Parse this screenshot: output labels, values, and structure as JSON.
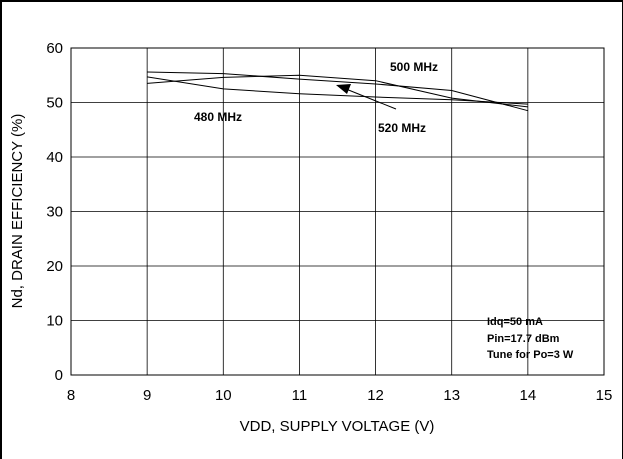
{
  "chart_data": {
    "type": "line",
    "xlabel": "VDD, SUPPLY VOLTAGE (V)",
    "ylabel": "Nd, DRAIN EFFICIENCY (%)",
    "xlim": [
      8,
      15
    ],
    "ylim": [
      0,
      60
    ],
    "xticks": [
      8,
      9,
      10,
      11,
      12,
      13,
      14,
      15
    ],
    "yticks": [
      0,
      10,
      20,
      30,
      40,
      50,
      60
    ],
    "grid": true,
    "series": [
      {
        "name": "500 MHz",
        "x": [
          9,
          10,
          11,
          12,
          13,
          14
        ],
        "y": [
          55.6,
          55.3,
          54.3,
          53.4,
          52.2,
          48.5
        ]
      },
      {
        "name": "480 MHz",
        "x": [
          9,
          10,
          11,
          12,
          13,
          14
        ],
        "y": [
          53.5,
          54.6,
          55.0,
          54.0,
          50.8,
          49.2
        ]
      },
      {
        "name": "520 MHz",
        "x": [
          9,
          10,
          11,
          12,
          13,
          14
        ],
        "y": [
          54.7,
          52.5,
          51.6,
          51.0,
          50.5,
          49.7
        ]
      }
    ],
    "annotations": [
      "Idq=50 mA",
      "Pin=17.7 dBm",
      "Tune for Po=3 W"
    ]
  }
}
